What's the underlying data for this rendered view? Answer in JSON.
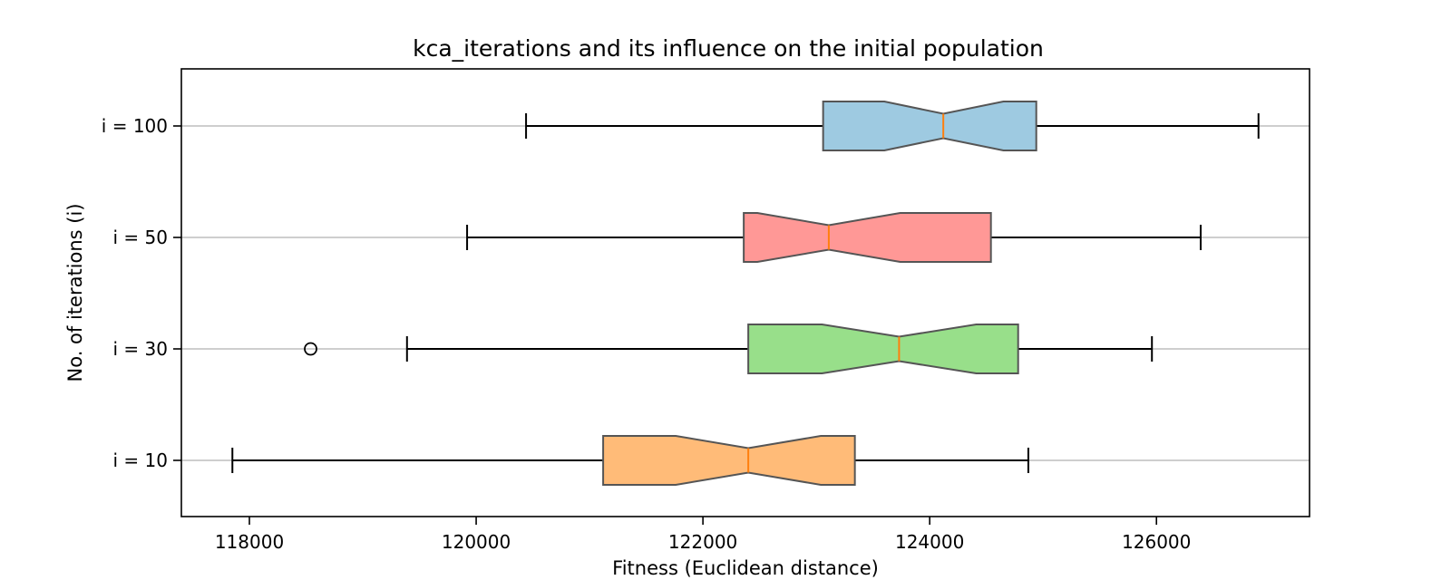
{
  "chart_data": {
    "type": "boxplot",
    "orientation": "horizontal",
    "notched": true,
    "title": "kca_iterations and its influence on the initial population",
    "xlabel": "Fitness (Euclidean distance)",
    "ylabel": "No. of iterations (i)",
    "xlim": [
      117400,
      127350
    ],
    "xticks": [
      118000,
      120000,
      122000,
      124000,
      126000
    ],
    "xtick_labels": [
      "118000",
      "120000",
      "122000",
      "124000",
      "126000"
    ],
    "grid": "horizontal gridlines at each category",
    "categories": [
      "i = 10",
      "i = 30",
      "i = 50",
      "i = 100"
    ],
    "boxes": [
      {
        "label": "i = 10",
        "color": "#ffbb78",
        "whisker_low": 117850,
        "q1": 121120,
        "notch_low": 121760,
        "median": 122400,
        "notch_high": 123040,
        "q3": 123340,
        "whisker_high": 124870,
        "outliers": []
      },
      {
        "label": "i = 30",
        "color": "#98df8a",
        "whisker_low": 119390,
        "q1": 122400,
        "notch_low": 123050,
        "median": 123730,
        "notch_high": 124410,
        "q3": 124780,
        "whisker_high": 125960,
        "outliers": [
          118540
        ]
      },
      {
        "label": "i = 50",
        "color": "#ff9896",
        "whisker_low": 119920,
        "q1": 122360,
        "notch_low": 122480,
        "median": 123110,
        "notch_high": 123740,
        "q3": 124540,
        "whisker_high": 126390,
        "outliers": []
      },
      {
        "label": "i = 100",
        "color": "#9ecae1",
        "whisker_low": 120440,
        "q1": 123060,
        "notch_low": 123600,
        "median": 124120,
        "notch_high": 124650,
        "q3": 124940,
        "whisker_high": 126900,
        "outliers": []
      }
    ],
    "median_color": "#ff7f0e",
    "box_edge_color": "#555555"
  }
}
